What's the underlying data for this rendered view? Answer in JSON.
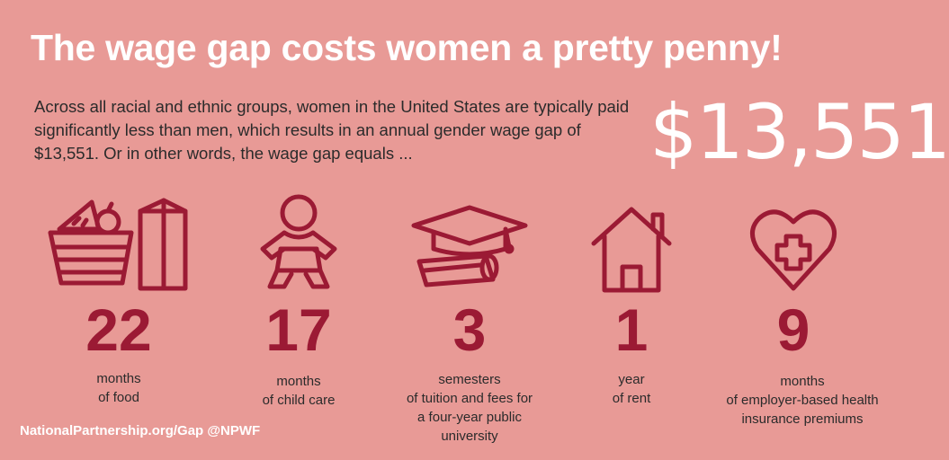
{
  "title": "The wage gap costs women a pretty penny!",
  "intro": "Across all racial and ethnic groups, women in the United States are typically paid significantly less than men, which results in an annual gender wage gap of $13,551. Or in other words, the wage gap equals ...",
  "amount": "$13,551",
  "colors": {
    "background": "#e89a96",
    "accent": "#9b1a34",
    "text": "#2b2b2b",
    "white": "#ffffff"
  },
  "items": [
    {
      "icon": "grocery-basket-icon",
      "number": "22",
      "caption_line1": "months",
      "caption_line2": "of food"
    },
    {
      "icon": "baby-icon",
      "number": "17",
      "caption_line1": "months",
      "caption_line2": "of child care"
    },
    {
      "icon": "graduation-cap-icon",
      "number": "3",
      "caption_line1": "semesters",
      "caption_line2": "of tuition and fees for",
      "caption_line3": "a four-year public",
      "caption_line4": "university"
    },
    {
      "icon": "house-icon",
      "number": "1",
      "caption_line1": "year",
      "caption_line2": "of rent"
    },
    {
      "icon": "heart-medical-icon",
      "number": "9",
      "caption_line1": "months",
      "caption_line2": "of employer-based health",
      "caption_line3": "insurance premiums"
    }
  ],
  "footer": {
    "text": "NationalPartnership.org/Gap  @NPWF"
  }
}
